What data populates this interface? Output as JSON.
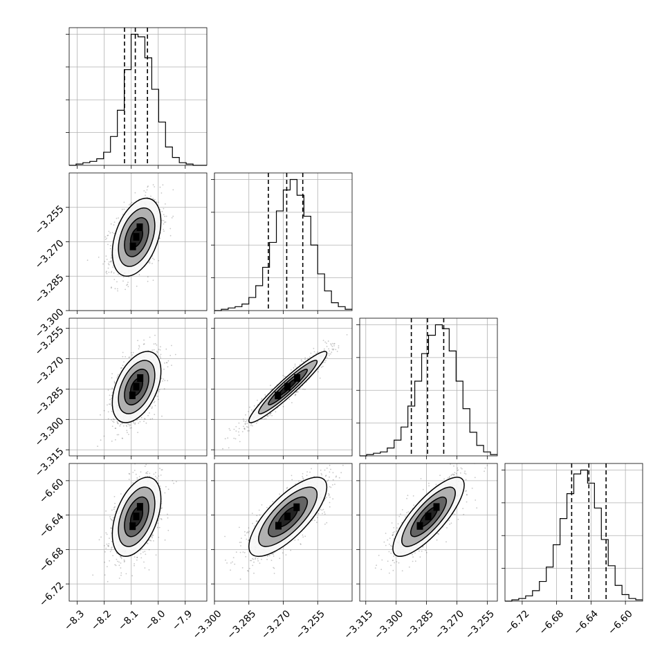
{
  "chart_data": {
    "type": "corner",
    "parameters": [
      {
        "mean": -8.08,
        "sigma": 0.045,
        "range": [
          -8.33,
          -7.82
        ],
        "ticks": [
          -8.3,
          -8.2,
          -8.1,
          -8.0,
          -7.9
        ],
        "tick_labels": [
          "−8.3",
          "−8.2",
          "−8.1",
          "−8.0",
          "−7.9"
        ],
        "quantiles": [
          -8.125,
          -8.085,
          -8.04
        ],
        "histogram": [
          0,
          1,
          2,
          3,
          5,
          10,
          22,
          42,
          73,
          100,
          98,
          82,
          58,
          33,
          14,
          6,
          2,
          1,
          0,
          0
        ]
      },
      {
        "mean": -3.268,
        "sigma": 0.0085,
        "range": [
          -3.3,
          -3.24
        ],
        "ticks": [
          -3.3,
          -3.285,
          -3.27,
          -3.255
        ],
        "tick_labels": [
          "−3.300",
          "−3.285",
          "−3.270",
          "−3.255"
        ],
        "quantiles": [
          -3.2765,
          -3.2685,
          -3.2615
        ],
        "histogram": [
          0,
          1,
          2,
          3,
          5,
          10,
          19,
          33,
          52,
          76,
          92,
          100,
          88,
          72,
          50,
          28,
          15,
          6,
          3,
          1
        ]
      },
      {
        "mean": -3.284,
        "sigma": 0.0088,
        "range": [
          -3.318,
          -3.25
        ],
        "ticks": [
          -3.315,
          -3.3,
          -3.285,
          -3.27,
          -3.255
        ],
        "tick_labels": [
          "−3.315",
          "−3.300",
          "−3.285",
          "−3.270",
          "−3.255"
        ],
        "quantiles": [
          -3.2925,
          -3.2845,
          -3.2765
        ],
        "histogram": [
          0,
          1,
          2,
          3,
          6,
          12,
          22,
          38,
          57,
          78,
          92,
          100,
          97,
          80,
          57,
          36,
          18,
          8,
          3,
          1
        ]
      },
      {
        "mean": -6.642,
        "sigma": 0.023,
        "range": [
          -6.74,
          -6.58
        ],
        "ticks": [
          -6.72,
          -6.68,
          -6.64,
          -6.6
        ],
        "tick_labels": [
          "−6.72",
          "−6.68",
          "−6.64",
          "−6.60"
        ],
        "quantiles": [
          -6.6625,
          -6.6425,
          -6.6225
        ],
        "histogram": [
          0,
          1,
          2,
          4,
          8,
          15,
          26,
          43,
          63,
          82,
          97,
          100,
          90,
          71,
          47,
          27,
          12,
          5,
          2,
          1
        ]
      }
    ],
    "correlations": [
      [
        1.0,
        0.4,
        0.45,
        0.45
      ],
      [
        0.4,
        1.0,
        0.95,
        0.75
      ],
      [
        0.45,
        0.95,
        1.0,
        0.8
      ],
      [
        0.45,
        0.75,
        0.8,
        1.0
      ]
    ],
    "contour_levels_sigma": [
      0.5,
      1.0,
      1.5,
      2.0
    ],
    "colors": {
      "line": "#000000",
      "grid": "#b0b0b0",
      "scatter": "#333333"
    },
    "grid": true
  }
}
